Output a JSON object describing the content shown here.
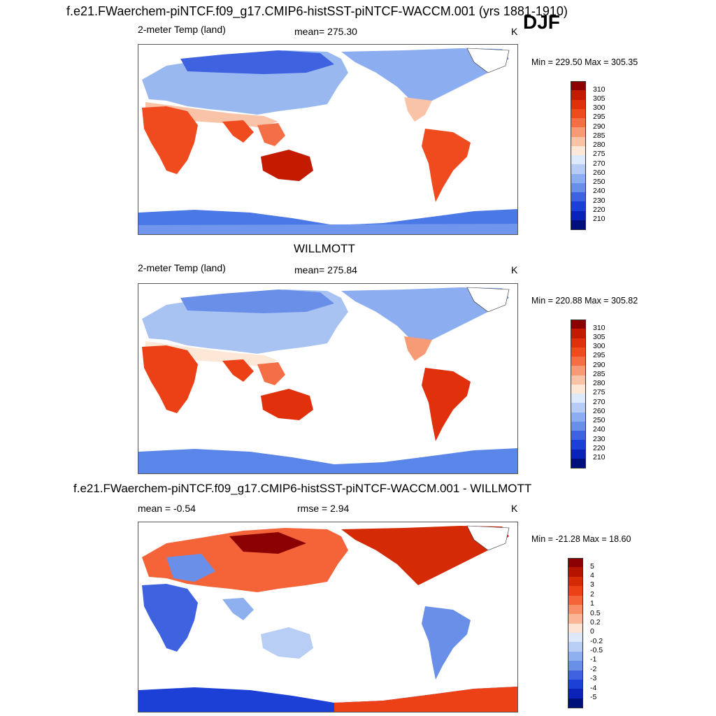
{
  "header": {
    "title": "f.e21.FWaerchem-piNTCF.f09_g17.CMIP6-histSST-piNTCF-WACCM.001 (yrs 1881-1910)",
    "season": "DJF"
  },
  "panels": [
    {
      "variable": "2-meter Temp (land)",
      "mean_text": "mean= 275.30",
      "units": "K",
      "minmax": "Min = 229.50 Max = 305.35"
    },
    {
      "title": "WILLMOTT",
      "variable": "2-meter Temp (land)",
      "mean_text": "mean= 275.84",
      "units": "K",
      "minmax": "Min = 220.88 Max = 305.82"
    },
    {
      "title": "f.e21.FWaerchem-piNTCF.f09_g17.CMIP6-histSST-piNTCF-WACCM.001 - WILLMOTT",
      "mean_text": "mean =  -0.54",
      "rmse_text": "rmse =   2.94",
      "units": "K",
      "minmax": "Min = -21.28 Max =  18.60"
    }
  ],
  "chart_data": [
    {
      "type": "heatmap",
      "title": "2-meter Temp (land)",
      "mean": 275.3,
      "min": 229.5,
      "max": 305.35,
      "units": "K",
      "colorbar_levels": [
        "310",
        "305",
        "300",
        "295",
        "290",
        "285",
        "280",
        "275",
        "270",
        "260",
        "250",
        "240",
        "230",
        "220",
        "210"
      ],
      "colorbar_colors": [
        "#8b0000",
        "#c41a00",
        "#e0300c",
        "#f04a1f",
        "#f56f46",
        "#f79a76",
        "#f9c3a7",
        "#fde8d8",
        "#dce9fb",
        "#b6ccf5",
        "#8cadef",
        "#6a8fe9",
        "#3f63e0",
        "#1c3fd6",
        "#0a22b8",
        "#00107a"
      ]
    },
    {
      "type": "heatmap",
      "title": "WILLMOTT",
      "mean": 275.84,
      "min": 220.88,
      "max": 305.82,
      "units": "K",
      "colorbar_levels": [
        "310",
        "305",
        "300",
        "295",
        "290",
        "285",
        "280",
        "275",
        "270",
        "260",
        "250",
        "240",
        "230",
        "220",
        "210"
      ],
      "colorbar_colors": [
        "#8b0000",
        "#c41a00",
        "#e0300c",
        "#f04a1f",
        "#f56f46",
        "#f79a76",
        "#f9c3a7",
        "#fde8d8",
        "#dce9fb",
        "#b6ccf5",
        "#8cadef",
        "#6a8fe9",
        "#3f63e0",
        "#1c3fd6",
        "#0a22b8",
        "#00107a"
      ]
    },
    {
      "type": "heatmap",
      "title": "f.e21.FWaerchem-piNTCF.f09_g17.CMIP6-histSST-piNTCF-WACCM.001 - WILLMOTT",
      "mean": -0.54,
      "rmse": 2.94,
      "min": -21.28,
      "max": 18.6,
      "units": "K",
      "colorbar_levels": [
        "5",
        "4",
        "3",
        "2",
        "1",
        "0.5",
        "0.2",
        "0",
        "-0.2",
        "-0.5",
        "-1",
        "-2",
        "-3",
        "-4",
        "-5"
      ],
      "colorbar_colors": [
        "#8b0000",
        "#b51400",
        "#d42a06",
        "#ec4116",
        "#f56438",
        "#f88d68",
        "#fab596",
        "#fde3d2",
        "#dde9fb",
        "#b9cef5",
        "#8fb0ef",
        "#6a8fe9",
        "#3f63e0",
        "#1c3fd6",
        "#0a22b8",
        "#00107a"
      ]
    }
  ]
}
